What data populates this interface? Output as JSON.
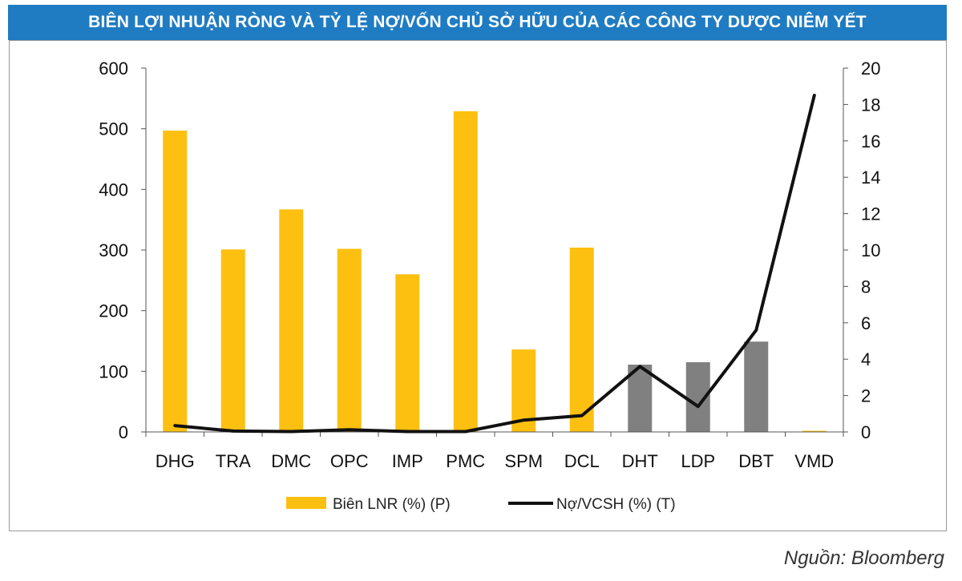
{
  "title": "BIÊN LỢI NHUẬN RÒNG VÀ TỶ LỆ NỢ/VỐN CHỦ SỞ HỮU CỦA CÁC CÔNG TY DƯỢC NIÊM YẾT",
  "source": "Nguồn: Bloomberg",
  "colors": {
    "title_bg": "#1f7cc2",
    "bar_primary": "#fdc010",
    "bar_secondary": "#808080",
    "line": "#111111"
  },
  "chart_data": {
    "type": "bar",
    "categories": [
      "DHG",
      "TRA",
      "DMC",
      "OPC",
      "IMP",
      "PMC",
      "SPM",
      "DCL",
      "DHT",
      "LDP",
      "DBT",
      "VMD"
    ],
    "series": [
      {
        "name": "Biên LNR (%) (P)",
        "type": "bar",
        "axis": "left",
        "values": [
          497,
          301,
          367,
          302,
          260,
          529,
          136,
          304,
          111,
          115,
          149,
          2
        ],
        "bar_colors": [
          "yellow",
          "yellow",
          "yellow",
          "yellow",
          "yellow",
          "yellow",
          "yellow",
          "yellow",
          "gray",
          "gray",
          "gray",
          "yellow"
        ]
      },
      {
        "name": "Nợ/VCSH (%) (T)",
        "type": "line",
        "axis": "right",
        "values": [
          0.35,
          0.05,
          0.02,
          0.12,
          0.02,
          0.02,
          0.65,
          0.9,
          3.6,
          1.4,
          5.6,
          18.5
        ]
      }
    ],
    "y_left": {
      "ylim": [
        0,
        600
      ],
      "ticks": [
        "0",
        "100",
        "200",
        "300",
        "400",
        "500",
        "600"
      ]
    },
    "y_right": {
      "ylim": [
        0,
        20
      ],
      "ticks": [
        "0",
        "2",
        "4",
        "6",
        "8",
        "10",
        "12",
        "14",
        "16",
        "18",
        "20"
      ]
    },
    "grid": false,
    "legend_position": "bottom"
  }
}
